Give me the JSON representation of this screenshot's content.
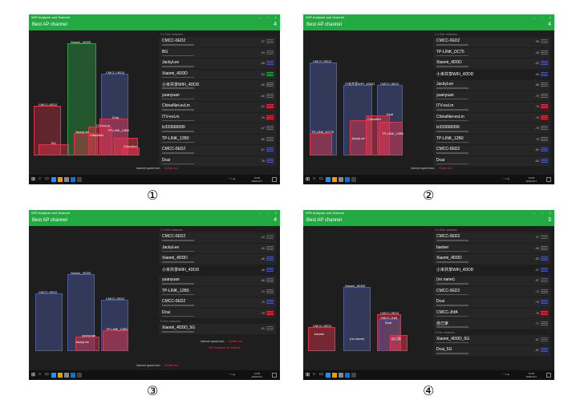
{
  "panels": [
    {
      "window_title": "WiFi Analyzer and Scanner",
      "header_title": "Best AP channel",
      "header_number": "4",
      "section_24": "2.4 GHz networks",
      "section_5": "",
      "networks": [
        {
          "name": "CMCC-0ED2",
          "db": "-37"
        },
        {
          "name": "BG",
          "db": "-53"
        },
        {
          "name": "JackyLee",
          "db": "-65"
        },
        {
          "name": "Xiaomi_4DDD",
          "db": "-54"
        },
        {
          "name": "小米共享WiFi_4DDD",
          "db": "-56"
        },
        {
          "name": "yuanyuan",
          "db": "-65"
        },
        {
          "name": "ChinaNet-evLm",
          "db": "-61"
        },
        {
          "name": "ITV-evLm",
          "db": "-76"
        },
        {
          "name": "lz333666999",
          "db": "-67"
        },
        {
          "name": "TP-LINK_12B0",
          "db": "-80"
        },
        {
          "name": "CMCC-0ED2",
          "db": "-67"
        },
        {
          "name": "Dcai",
          "db": "-78"
        }
      ],
      "bar_labels": [
        "CMCC-0ED2",
        "Xiaomi_4DDD",
        "CMCC-0ED2",
        "BG",
        "Dcai",
        "JackyLee",
        "ITV-evLm",
        "ChinaNet",
        "TP-LINK_12B0",
        "ChinaNet"
      ],
      "speed_label": "Internet speed test :",
      "speed_value": "Mobile test",
      "extra_link": "",
      "time": "13:06",
      "date": "2020/4/17",
      "caption": "①"
    },
    {
      "window_title": "WiFi Analyzer and Scanner",
      "header_title": "Best AP channel",
      "header_number": "4",
      "section_24": "2.4 GHz networks",
      "section_5": "",
      "networks": [
        {
          "name": "CMCC-0ED2",
          "db": "-35"
        },
        {
          "name": "TP-LINK_DC75",
          "db": "-45"
        },
        {
          "name": "Xiaomi_4DDD",
          "db": "-52"
        },
        {
          "name": "小米共享WiFi_4DDD",
          "db": "-56"
        },
        {
          "name": "JackyLee",
          "db": "-68"
        },
        {
          "name": "yuanyuan",
          "db": "-70"
        },
        {
          "name": "ITV-evLm",
          "db": "-76"
        },
        {
          "name": "ChinaNet-evLm",
          "db": "-76"
        },
        {
          "name": "lz333666999",
          "db": "-76"
        },
        {
          "name": "TP-LINK_12B0",
          "db": "-78"
        },
        {
          "name": "CMCC-0ED2",
          "db": "-80"
        },
        {
          "name": "Dcai",
          "db": "-80"
        }
      ],
      "bar_labels": [
        "CMCC-0ED2",
        "小米共享WiFi_4DDD",
        "CMCC-0ED2",
        "TP-LINK_DC75",
        "Dcai",
        "ChinaNet",
        "JackyLee",
        "TP-LINK_12B0"
      ],
      "speed_label": "Internet speed test :",
      "speed_value": "Mobile test",
      "extra_link": "",
      "time": "13:06",
      "date": "2020/4/17",
      "caption": "②"
    },
    {
      "window_title": "WiFi Analyzer and Scanner",
      "header_title": "Best AP channel",
      "header_number": "4",
      "section_24": "2.4 GHz networks",
      "section_5": "5 GHz networks",
      "networks": [
        {
          "name": "CMCC-0ED2",
          "db": "-43"
        },
        {
          "name": "JackyLee",
          "db": "-45"
        },
        {
          "name": "Xiaomi_4DDD",
          "db": "-46"
        },
        {
          "name": "小米共享WiFi_4DDD",
          "db": "-46"
        },
        {
          "name": "yuanyuan",
          "db": "-66"
        },
        {
          "name": "TP-LINK_12B0",
          "db": "-70"
        },
        {
          "name": "CMCC-0ED2",
          "db": "-70"
        },
        {
          "name": "Dcai",
          "db": "-75"
        },
        {
          "name": "Xiaomi_4DDD_5G",
          "db": "-51"
        }
      ],
      "bar_labels": [
        "CMCC-0ED2",
        "Xiaomi_4DDD",
        "CMCC-0ED2",
        "yuanyuan",
        "JackyLee",
        "TP-LINK_12B0"
      ],
      "speed_label": "Internet speed test :",
      "speed_value": "Mobile test",
      "extra_link": "WiFi Analyzer for Android",
      "time": "13:06",
      "date": "2020/4/17",
      "caption": "③"
    },
    {
      "window_title": "WiFi Analyzer and Scanner",
      "header_title": "Best AP channel",
      "header_number": "3",
      "section_24": "2.4 GHz networks",
      "section_5": "5 GHz networks",
      "networks": [
        {
          "name": "CMCC-0ED2",
          "db": "-37"
        },
        {
          "name": "baobei",
          "db": "-59"
        },
        {
          "name": "Xiaomi_4DDD",
          "db": "-59"
        },
        {
          "name": "小米共享WiFi_4DDD",
          "db": "-57"
        },
        {
          "name": "(no name)",
          "db": "-57"
        },
        {
          "name": "CMCC-0ED2",
          "db": "-74"
        },
        {
          "name": "Dcai",
          "db": "-76"
        },
        {
          "name": "CMCC-JhfA",
          "db": "-76"
        },
        {
          "name": "自己家",
          "db": "-77"
        },
        {
          "name": "Xiaomi_4DDD_5G",
          "db": "-57"
        },
        {
          "name": "Dcai_5G",
          "db": "-81"
        }
      ],
      "bar_labels": [
        "CMCC-0ED2",
        "baobei",
        "Xiaomi_4DDD",
        "(no name)",
        "CMCC-0ED2",
        "CMCC-JhfA",
        "Dcai",
        "自己家"
      ],
      "speed_label": "",
      "speed_value": "",
      "extra_link": "",
      "time": "13:06",
      "date": "2020/4/17",
      "caption": "④"
    }
  ],
  "colors": {
    "header_green": "#23a942",
    "bar_blue": "#4e5aa0",
    "bar_red": "#e0344b",
    "bar_green": "#2f9e44",
    "bg": "#1e1e1e"
  }
}
